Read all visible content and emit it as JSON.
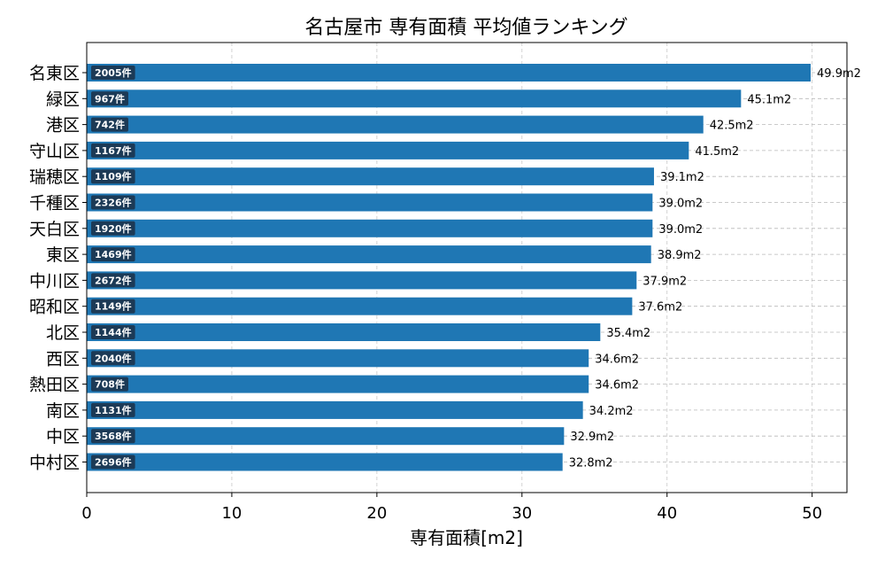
{
  "chart_data": {
    "type": "bar",
    "orientation": "horizontal",
    "title": "名古屋市 専有面積 平均値ランキング",
    "xlabel": "専有面積[m2]",
    "ylabel": "",
    "xlim": [
      0,
      52.4
    ],
    "xticks": [
      0,
      10,
      20,
      30,
      40,
      50
    ],
    "grid": true,
    "bar_color": "#1f77b4",
    "badge_color": "#1c3a56",
    "value_suffix": "m2",
    "count_suffix": "件",
    "categories": [
      "名東区",
      "緑区",
      "港区",
      "守山区",
      "瑞穂区",
      "千種区",
      "天白区",
      "東区",
      "中川区",
      "昭和区",
      "北区",
      "西区",
      "熱田区",
      "南区",
      "中区",
      "中村区"
    ],
    "values": [
      49.9,
      45.1,
      42.5,
      41.5,
      39.1,
      39.0,
      39.0,
      38.9,
      37.9,
      37.6,
      35.4,
      34.6,
      34.6,
      34.2,
      32.9,
      32.8
    ],
    "value_labels": [
      "49.9m2",
      "45.1m2",
      "42.5m2",
      "41.5m2",
      "39.1m2",
      "39.0m2",
      "39.0m2",
      "38.9m2",
      "37.9m2",
      "37.6m2",
      "35.4m2",
      "34.6m2",
      "34.6m2",
      "34.2m2",
      "32.9m2",
      "32.8m2"
    ],
    "counts": [
      2005,
      967,
      742,
      1167,
      1109,
      2326,
      1920,
      1469,
      2672,
      1149,
      1144,
      2040,
      708,
      1131,
      3568,
      2696
    ],
    "count_labels": [
      "2005件",
      "967件",
      "742件",
      "1167件",
      "1109件",
      "2326件",
      "1920件",
      "1469件",
      "2672件",
      "1149件",
      "1144件",
      "2040件",
      "708件",
      "1131件",
      "3568件",
      "2696件"
    ]
  }
}
